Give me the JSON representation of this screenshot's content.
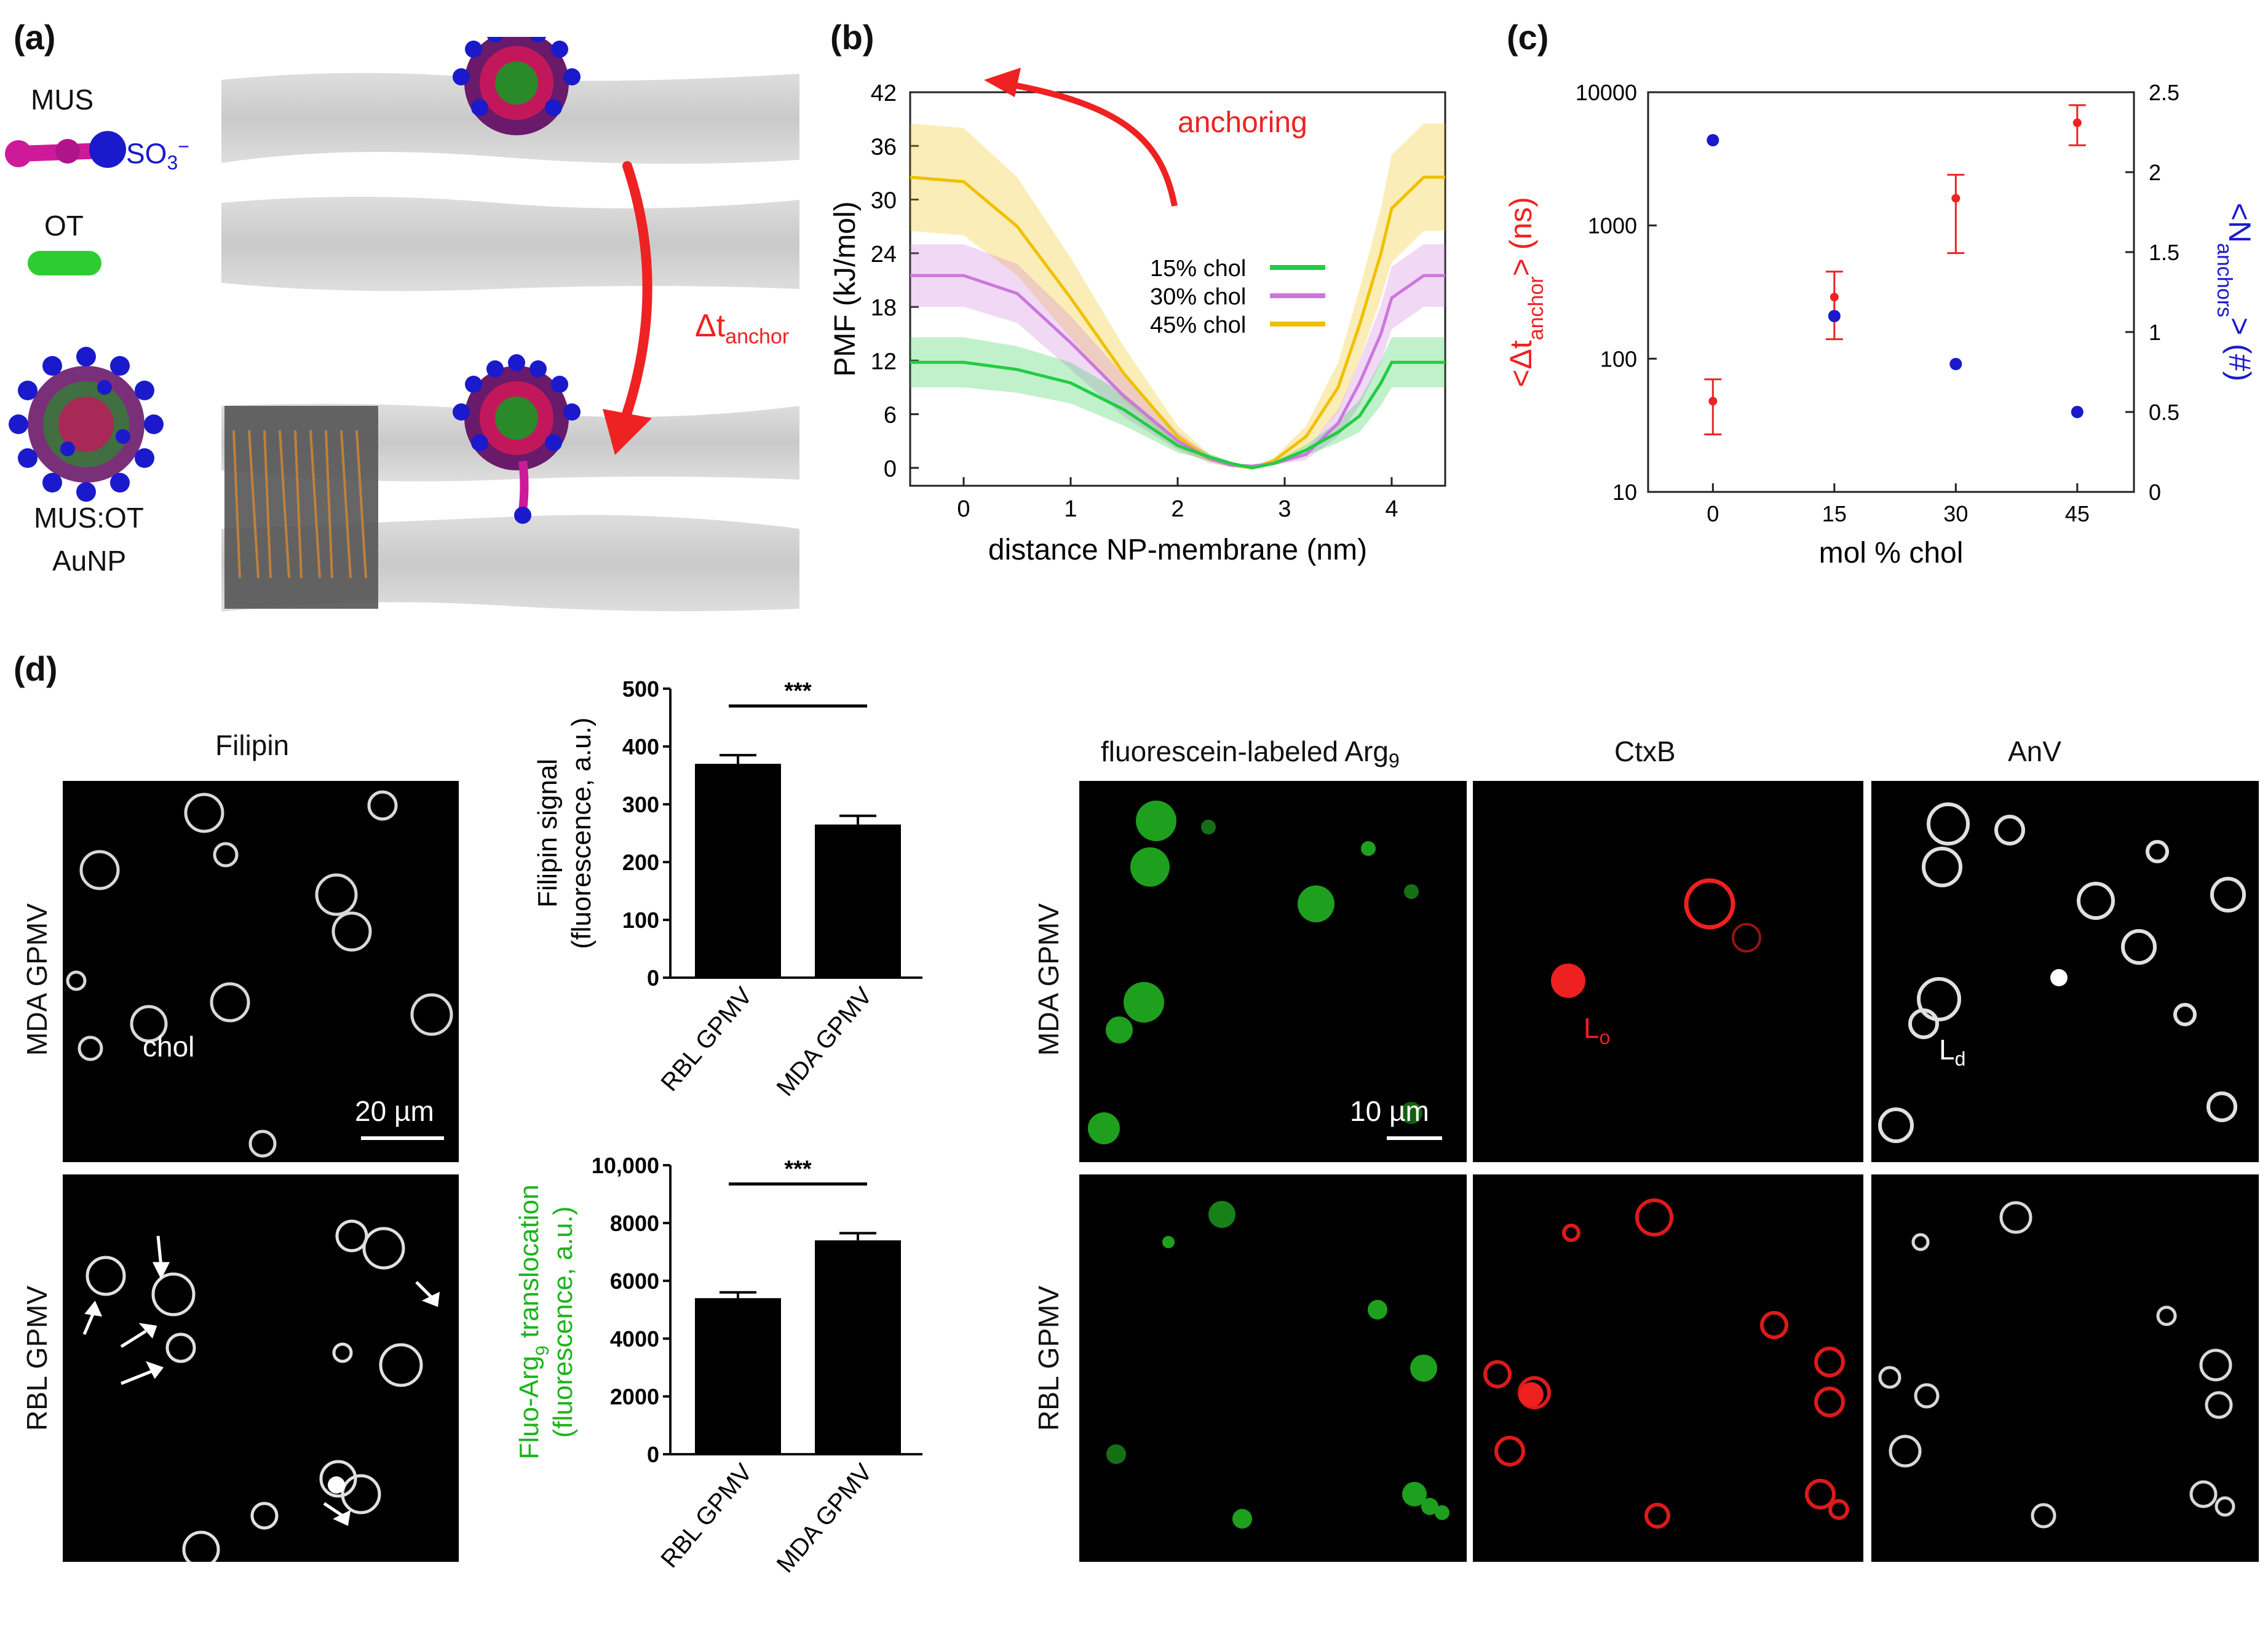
{
  "panel_a": {
    "label": "(a)",
    "mus_label": "MUS",
    "so3_label": "SO",
    "so3_sub": "3",
    "so3_sup": "−",
    "ot_label": "OT",
    "np_label_line1": "MUS:OT",
    "np_label_line2": "AuNP",
    "dt_main": "Δt",
    "dt_sub": "anchor"
  },
  "panel_b": {
    "label": "(b)",
    "annotation": "anchoring"
  },
  "panel_c": {
    "label": "(c)"
  },
  "panel_d": {
    "label": "(d)",
    "filipin_title": "Filipin",
    "row_mda": "MDA GPMV",
    "row_rbl": "RBL GPMV",
    "chol_label": "chol",
    "scale_20": "20 µm",
    "scale_10": "10 µm",
    "col_arg9": "fluorescein-labeled Arg",
    "col_arg9_sub": "9",
    "col_ctxb": "CtxB",
    "col_anv": "AnV",
    "lo_main": "L",
    "lo_sub": "o",
    "ld_main": "L",
    "ld_sub": "d",
    "sig_stars": "***"
  },
  "colors": {
    "series_15": "#22cc44",
    "series_30": "#cc77dd",
    "series_45": "#f0c000",
    "red": "#ee2222",
    "blue": "#1a1acc",
    "mus_magenta": "#cc1a99",
    "ot_green": "#2ecc33"
  },
  "chart_data": [
    {
      "id": "b",
      "type": "line",
      "xlabel": "distance NP-membrane (nm)",
      "ylabel": "PMF (kJ/mol)",
      "xlim": [
        -0.5,
        4.5
      ],
      "ylim": [
        -2,
        42
      ],
      "xticks": [
        0,
        1,
        2,
        3,
        4
      ],
      "yticks": [
        0,
        6,
        12,
        18,
        24,
        30,
        36,
        42
      ],
      "legend_position": "center-right",
      "series": [
        {
          "name": "15% chol",
          "color": "#22cc44",
          "x": [
            -0.5,
            0,
            0.5,
            1.0,
            1.5,
            2.0,
            2.3,
            2.5,
            2.7,
            2.9,
            3.2,
            3.5,
            3.7,
            3.9,
            4.0,
            4.3,
            4.5
          ],
          "y": [
            11.8,
            11.8,
            11.0,
            9.5,
            6.5,
            2.5,
            1.2,
            0.5,
            0.0,
            0.5,
            2.0,
            4.0,
            5.8,
            9.5,
            11.8,
            11.8,
            11.8
          ],
          "err": [
            2.8,
            2.8,
            2.6,
            2.3,
            1.8,
            0.8,
            0.4,
            0.2,
            0.0,
            0.2,
            0.6,
            1.2,
            1.8,
            2.5,
            2.8,
            2.8,
            2.8
          ]
        },
        {
          "name": "30% chol",
          "color": "#cc77dd",
          "x": [
            -0.5,
            0,
            0.5,
            1.0,
            1.5,
            2.0,
            2.3,
            2.5,
            2.7,
            2.9,
            3.2,
            3.5,
            3.7,
            3.9,
            4.0,
            4.3,
            4.5
          ],
          "y": [
            21.5,
            21.5,
            19.5,
            14.0,
            8.0,
            3.0,
            1.0,
            0.3,
            0.2,
            0.5,
            1.5,
            5.0,
            9.5,
            15.0,
            19.0,
            21.5,
            21.5
          ],
          "err": [
            3.5,
            3.5,
            3.3,
            3.0,
            2.3,
            1.0,
            0.4,
            0.2,
            0.1,
            0.2,
            0.6,
            1.5,
            2.5,
            3.2,
            3.5,
            3.5,
            3.5
          ]
        },
        {
          "name": "45% chol",
          "color": "#f0c000",
          "x": [
            -0.5,
            0,
            0.5,
            1.0,
            1.5,
            2.0,
            2.3,
            2.5,
            2.7,
            2.9,
            3.2,
            3.5,
            3.7,
            3.9,
            4.0,
            4.3,
            4.5
          ],
          "y": [
            32.5,
            32.0,
            27.0,
            19.0,
            10.5,
            3.5,
            1.0,
            0.3,
            0.0,
            0.8,
            3.5,
            9.0,
            16.0,
            24.0,
            29.0,
            32.5,
            32.5
          ],
          "err": [
            6.0,
            6.0,
            5.5,
            4.5,
            3.0,
            1.2,
            0.5,
            0.2,
            0.1,
            0.3,
            1.2,
            2.8,
            4.0,
            5.0,
            6.0,
            6.0,
            6.0
          ]
        }
      ]
    },
    {
      "id": "c",
      "type": "scatter",
      "xlabel": "mol % chol",
      "ylabel_left_main": "<Δt",
      "ylabel_left_sub": "anchor",
      "ylabel_left_end": "> (ns)",
      "ylabel_right_main": "<N",
      "ylabel_right_sub": "anchors",
      "ylabel_right_end": "> (#)",
      "x": [
        0,
        15,
        30,
        45
      ],
      "xlim": [
        -8,
        52
      ],
      "ylim_left": [
        10,
        10000
      ],
      "yscale_left": "log",
      "yticks_left": [
        10,
        100,
        1000,
        10000
      ],
      "ylim_right": [
        0,
        2.5
      ],
      "yticks_right": [
        "0",
        "0.5",
        "1",
        "1.5",
        "2",
        "2.5"
      ],
      "series": [
        {
          "name": "<Δt_anchor>",
          "axis": "left",
          "color": "#ee2222",
          "values": [
            48,
            290,
            1600,
            5900
          ],
          "err_low": [
            27,
            140,
            620,
            4000
          ],
          "err_high": [
            70,
            450,
            2400,
            8000
          ]
        },
        {
          "name": "<N_anchors>",
          "axis": "right",
          "color": "#1a1acc",
          "values": [
            2.2,
            1.1,
            0.8,
            0.5
          ]
        }
      ]
    },
    {
      "id": "d-filipin",
      "type": "bar",
      "ylabel_line1": "Filipin signal",
      "ylabel_line2": "(fluorescence, a.u.)",
      "categories": [
        "RBL GPMV",
        "MDA GPMV"
      ],
      "values": [
        370,
        265
      ],
      "errors": [
        15,
        15
      ],
      "ylim": [
        0,
        500
      ],
      "yticks": [
        "0",
        "100",
        "200",
        "300",
        "400",
        "500"
      ],
      "significance": "***"
    },
    {
      "id": "d-arg9",
      "type": "bar",
      "ylabel_line1": "Fluo-Arg",
      "ylabel_line1_sub": "9",
      "ylabel_line1_end": " translocation",
      "ylabel_line2": "(fluorescence, a.u.)",
      "categories": [
        "RBL GPMV",
        "MDA GPMV"
      ],
      "values": [
        5400,
        7400
      ],
      "errors": [
        200,
        250
      ],
      "ylim": [
        0,
        10000
      ],
      "yticks": [
        "0",
        "2000",
        "4000",
        "6000",
        "8000",
        "10,000"
      ],
      "significance": "***"
    }
  ]
}
